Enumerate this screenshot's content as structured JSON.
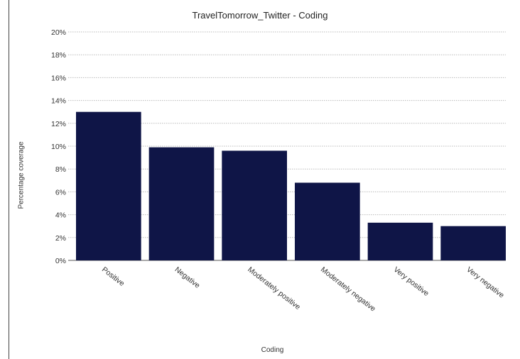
{
  "chart_data": {
    "type": "bar",
    "title": "TravelTomorrow_Twitter - Coding",
    "xlabel": "Coding",
    "ylabel": "Percentage coverage",
    "categories": [
      "Positive",
      "Negative",
      "Moderately positive",
      "Moderately negative",
      "Very positive",
      "Very negative"
    ],
    "values": [
      13.0,
      9.9,
      9.6,
      6.8,
      3.3,
      3.0
    ],
    "ylim": [
      0,
      20
    ],
    "yticks": [
      "0%",
      "2%",
      "4%",
      "6%",
      "8%",
      "10%",
      "12%",
      "14%",
      "16%",
      "18%",
      "20%"
    ],
    "grid": true,
    "bar_color": "#0f1547",
    "grid_color": "#bbbbbb"
  }
}
